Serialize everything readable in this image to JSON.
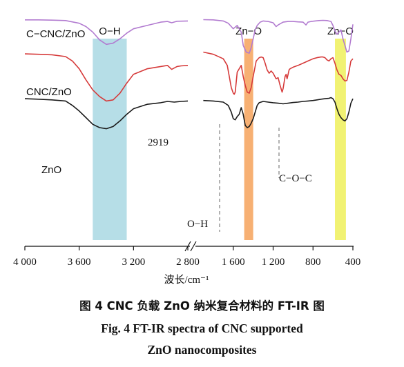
{
  "figure": {
    "caption_cn": "图 4   CNC 负载 ZnO 纳米复合材料的 FT-IR 图",
    "caption_en_line1": "Fig. 4   FT-IR spectra of CNC supported",
    "caption_en_line2": "ZnO nanocomposites"
  },
  "chart_data": {
    "type": "line",
    "title": "",
    "xlabel": "波长/cm⁻¹",
    "ylabel": "",
    "x_reversed": true,
    "x_axis_break": [
      2800,
      2000
    ],
    "xlim": [
      4000,
      400
    ],
    "x_ticks": [
      "4 000",
      "3 600",
      "3 200",
      "2 800",
      "1 600",
      "1 200",
      "800",
      "400"
    ],
    "grid": false,
    "legend": "labels next to curves",
    "highlight_bands": [
      {
        "label": "O−H",
        "from": 3500,
        "to": 3250,
        "color": "#a9d8e3"
      },
      {
        "label": "Zn−O",
        "from": 1490,
        "to": 1400,
        "color": "#f6a25a"
      },
      {
        "label": "Zn−O",
        "from": 580,
        "to": 470,
        "color": "#eef05a"
      }
    ],
    "annotations": [
      {
        "text": "2919",
        "x": 2919
      },
      {
        "text": "O−H",
        "x": 1600
      },
      {
        "text": "C−O−C",
        "x": 1060
      }
    ],
    "series": [
      {
        "name": "C−CNC/ZnO",
        "color": "#b27bd0",
        "x": [
          4000,
          3900,
          3800,
          3700,
          3600,
          3550,
          3500,
          3450,
          3400,
          3350,
          3300,
          3250,
          3200,
          3100,
          3000,
          2950,
          2919,
          2880,
          2800,
          1900,
          1800,
          1700,
          1650,
          1620,
          1600,
          1560,
          1520,
          1500,
          1470,
          1440,
          1420,
          1400,
          1380,
          1360,
          1330,
          1300,
          1250,
          1200,
          1170,
          1150,
          1120,
          1100,
          1050,
          1000,
          950,
          900,
          870,
          850,
          820,
          780,
          740,
          700,
          660,
          620,
          600,
          580,
          560,
          540,
          520,
          500,
          480,
          460,
          440,
          420,
          400
        ],
        "y": [
          0.985,
          0.985,
          0.984,
          0.982,
          0.97,
          0.955,
          0.93,
          0.895,
          0.875,
          0.88,
          0.9,
          0.925,
          0.945,
          0.96,
          0.975,
          0.978,
          0.972,
          0.979,
          0.98,
          0.986,
          0.985,
          0.98,
          0.97,
          0.955,
          0.945,
          0.96,
          0.93,
          0.87,
          0.84,
          0.835,
          0.86,
          0.9,
          0.94,
          0.96,
          0.975,
          0.98,
          0.978,
          0.972,
          0.955,
          0.962,
          0.97,
          0.975,
          0.978,
          0.978,
          0.976,
          0.975,
          0.962,
          0.975,
          0.978,
          0.98,
          0.982,
          0.983,
          0.982,
          0.978,
          0.96,
          0.935,
          0.92,
          0.93,
          0.94,
          0.9,
          0.87,
          0.84,
          0.845,
          0.9,
          0.965
        ]
      },
      {
        "name": "CNC/ZnO",
        "color": "#d63a3a",
        "x": [
          4000,
          3900,
          3800,
          3700,
          3650,
          3600,
          3550,
          3500,
          3450,
          3400,
          3350,
          3300,
          3250,
          3200,
          3100,
          3000,
          2950,
          2919,
          2880,
          2850,
          2800,
          1900,
          1800,
          1700,
          1660,
          1640,
          1620,
          1600,
          1590,
          1580,
          1560,
          1520,
          1500,
          1480,
          1460,
          1440,
          1420,
          1400,
          1370,
          1340,
          1320,
          1300,
          1280,
          1260,
          1240,
          1230,
          1220,
          1200,
          1170,
          1150,
          1130,
          1110,
          1100,
          1080,
          1070,
          1060,
          1050,
          1040,
          1030,
          1000,
          950,
          900,
          850,
          800,
          760,
          720,
          700,
          680,
          660,
          640,
          620,
          600,
          580,
          560,
          540,
          520,
          500,
          480,
          460,
          440,
          420,
          400
        ],
        "y": [
          0.832,
          0.83,
          0.828,
          0.82,
          0.8,
          0.765,
          0.715,
          0.67,
          0.64,
          0.62,
          0.625,
          0.655,
          0.7,
          0.74,
          0.765,
          0.775,
          0.78,
          0.762,
          0.775,
          0.778,
          0.78,
          0.84,
          0.83,
          0.81,
          0.78,
          0.73,
          0.68,
          0.655,
          0.65,
          0.66,
          0.75,
          0.78,
          0.73,
          0.69,
          0.66,
          0.655,
          0.68,
          0.73,
          0.8,
          0.815,
          0.818,
          0.815,
          0.79,
          0.76,
          0.745,
          0.75,
          0.755,
          0.745,
          0.72,
          0.725,
          0.69,
          0.66,
          0.675,
          0.73,
          0.74,
          0.72,
          0.74,
          0.76,
          0.765,
          0.772,
          0.78,
          0.79,
          0.8,
          0.81,
          0.815,
          0.818,
          0.818,
          0.815,
          0.805,
          0.8,
          0.81,
          0.815,
          0.79,
          0.76,
          0.74,
          0.735,
          0.72,
          0.71,
          0.712,
          0.75,
          0.8,
          0.81
        ]
      },
      {
        "name": "ZnO",
        "color": "#1a1a1a",
        "x": [
          4000,
          3900,
          3800,
          3700,
          3650,
          3600,
          3550,
          3500,
          3450,
          3400,
          3350,
          3300,
          3250,
          3200,
          3150,
          3100,
          3000,
          2950,
          2900,
          2850,
          2800,
          1900,
          1800,
          1700,
          1650,
          1620,
          1600,
          1580,
          1560,
          1540,
          1520,
          1500,
          1480,
          1460,
          1440,
          1420,
          1400,
          1380,
          1360,
          1340,
          1300,
          1250,
          1200,
          1150,
          1100,
          1050,
          1000,
          950,
          900,
          850,
          800,
          760,
          720,
          680,
          640,
          620,
          600,
          580,
          560,
          540,
          520,
          500,
          480,
          460,
          440,
          420,
          400
        ],
        "y": [
          0.63,
          0.628,
          0.625,
          0.62,
          0.6,
          0.575,
          0.545,
          0.515,
          0.5,
          0.495,
          0.505,
          0.53,
          0.56,
          0.585,
          0.595,
          0.605,
          0.612,
          0.618,
          0.615,
          0.618,
          0.62,
          0.622,
          0.62,
          0.615,
          0.6,
          0.57,
          0.54,
          0.535,
          0.55,
          0.56,
          0.59,
          0.56,
          0.51,
          0.5,
          0.505,
          0.52,
          0.54,
          0.57,
          0.6,
          0.612,
          0.618,
          0.615,
          0.612,
          0.61,
          0.607,
          0.61,
          0.613,
          0.615,
          0.618,
          0.62,
          0.622,
          0.625,
          0.628,
          0.63,
          0.632,
          0.635,
          0.63,
          0.615,
          0.585,
          0.56,
          0.545,
          0.535,
          0.53,
          0.54,
          0.57,
          0.61,
          0.63
        ]
      }
    ]
  }
}
